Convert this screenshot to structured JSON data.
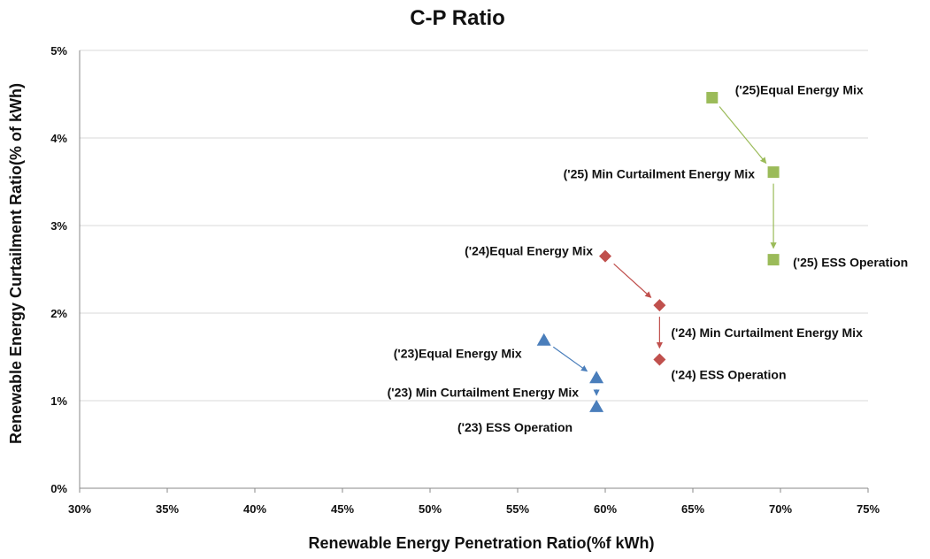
{
  "chart_data": {
    "type": "scatter",
    "title": "C-P Ratio",
    "xlabel": "Renewable Energy Penetration Ratio(%f kWh)",
    "ylabel": "Renewable Energy Curtailment Ratio(% of kWh)",
    "xlim": [
      0.3,
      0.75
    ],
    "ylim": [
      0.0,
      0.05
    ],
    "x_ticks": [
      "30%",
      "35%",
      "40%",
      "45%",
      "50%",
      "55%",
      "60%",
      "65%",
      "70%",
      "75%"
    ],
    "y_ticks": [
      "0%",
      "1%",
      "2%",
      "3%",
      "4%",
      "5%"
    ],
    "grid": "horizontal",
    "legend": "none",
    "series": [
      {
        "color": "#4a7ebb",
        "marker": "triangle",
        "points": [
          {
            "x": 0.565,
            "y": 0.0169,
            "label": "('23)Equal Energy Mix"
          },
          {
            "x": 0.595,
            "y": 0.0126,
            "label": "('23) Min Curtailment Energy Mix"
          },
          {
            "x": 0.595,
            "y": 0.0093,
            "label": "('23) ESS Operation"
          }
        ]
      },
      {
        "color": "#c0504d",
        "marker": "diamond",
        "points": [
          {
            "x": 0.6,
            "y": 0.0265,
            "label": "('24)Equal Energy Mix"
          },
          {
            "x": 0.631,
            "y": 0.0209,
            "label": "('24) Min Curtailment Energy Mix"
          },
          {
            "x": 0.631,
            "y": 0.0147,
            "label": "('24) ESS Operation"
          }
        ]
      },
      {
        "color": "#9bbb59",
        "marker": "square",
        "points": [
          {
            "x": 0.661,
            "y": 0.0446,
            "label": "('25)Equal Energy Mix"
          },
          {
            "x": 0.696,
            "y": 0.0361,
            "label": "('25) Min Curtailment Energy Mix"
          },
          {
            "x": 0.696,
            "y": 0.0261,
            "label": "('25) ESS Operation"
          }
        ]
      }
    ]
  }
}
